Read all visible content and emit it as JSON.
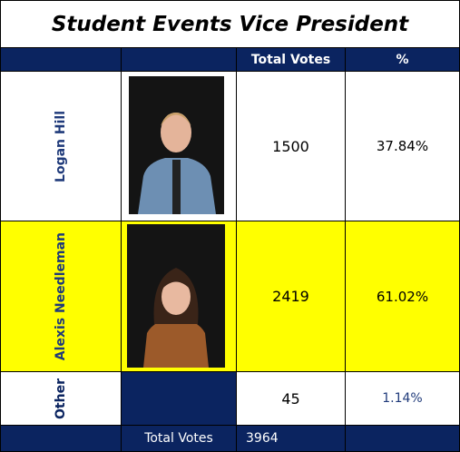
{
  "title": "Student Events Vice President",
  "header": {
    "votes": "Total Votes",
    "percent": "%"
  },
  "rows": [
    {
      "name": "Logan Hill",
      "votes": 1500,
      "percent": "37.84%"
    },
    {
      "name": "Alexis Needleman",
      "votes": 2419,
      "percent": "61.02%"
    },
    {
      "name": "Other",
      "votes": 45,
      "percent": "1.14%"
    }
  ],
  "footer": {
    "label": "Total Votes",
    "votes": 3964
  }
}
